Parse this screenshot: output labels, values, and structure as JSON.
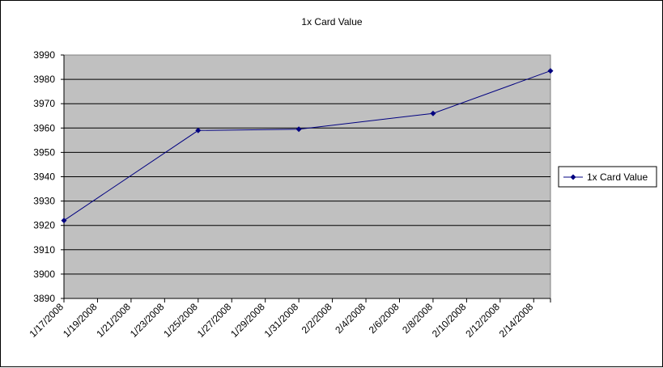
{
  "chart_data": {
    "type": "line",
    "title": "1x Card Value",
    "xlabel": "",
    "ylabel": "",
    "x_tick_labels": [
      "1/17/2008",
      "1/19/2008",
      "1/21/2008",
      "1/23/2008",
      "1/25/2008",
      "1/27/2008",
      "1/29/2008",
      "1/31/2008",
      "2/2/2008",
      "2/4/2008",
      "2/6/2008",
      "2/8/2008",
      "2/10/2008",
      "2/12/2008",
      "2/14/2008"
    ],
    "y_tick_labels": [
      "3890",
      "3900",
      "3910",
      "3920",
      "3930",
      "3940",
      "3950",
      "3960",
      "3970",
      "3980",
      "3990"
    ],
    "xlim": [
      "1/17/2008",
      "2/15/2008"
    ],
    "ylim": [
      3890,
      3990
    ],
    "grid": "horizontal",
    "plot_background": "#C0C0C0",
    "legend_position": "right",
    "series": [
      {
        "name": "1x Card Value",
        "color": "#000080",
        "marker": "diamond",
        "points": [
          {
            "x": "1/17/2008",
            "y": 3922
          },
          {
            "x": "1/25/2008",
            "y": 3959
          },
          {
            "x": "1/31/2008",
            "y": 3959.5
          },
          {
            "x": "2/8/2008",
            "y": 3966
          },
          {
            "x": "2/15/2008",
            "y": 3983.5
          }
        ]
      }
    ]
  }
}
